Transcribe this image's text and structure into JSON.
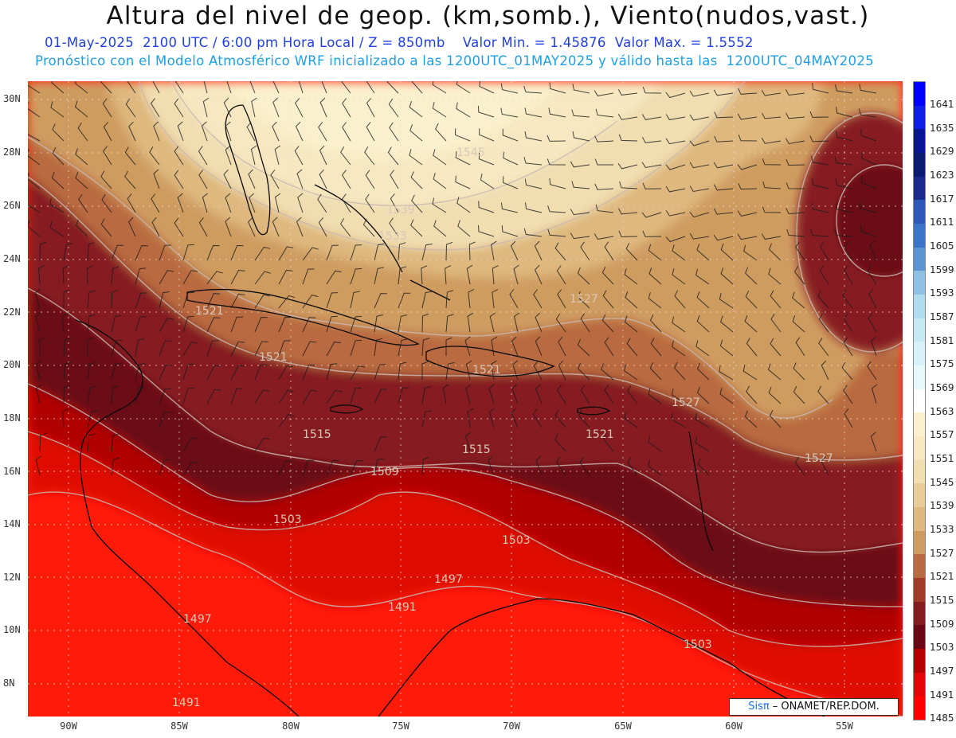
{
  "header": {
    "title": "Altura del nivel de geop. (km,somb.), Viento(nudos,vast.)",
    "subtitle": "01-May-2025  2100 UTC / 6:00 pm Hora Local / Z = 850mb    Valor Min. = 1.45876  Valor Max. = 1.5552",
    "subtitle2": "Pronóstico con el Modelo Atmosférico WRF inicializado a las 1200UTC_01MAY2025 y válido hasta las  1200UTC_04MAY2025"
  },
  "axes": {
    "lat_labels": [
      "30N",
      "28N",
      "26N",
      "24N",
      "22N",
      "20N",
      "18N",
      "16N",
      "14N",
      "12N",
      "10N",
      "8N"
    ],
    "lon_labels": [
      "90W",
      "85W",
      "80W",
      "75W",
      "70W",
      "65W",
      "60W",
      "55W"
    ]
  },
  "contours": {
    "labels": [
      "1545",
      "1539",
      "1533",
      "1527",
      "1521",
      "1521",
      "1521",
      "1521",
      "1527",
      "1527",
      "1515",
      "1515",
      "1509",
      "1503",
      "1503",
      "1497",
      "1491",
      "1497",
      "1503",
      "1491"
    ]
  },
  "colorbar": {
    "labels": [
      "1641",
      "1635",
      "1629",
      "1623",
      "1617",
      "1611",
      "1605",
      "1599",
      "1593",
      "1587",
      "1581",
      "1575",
      "1569",
      "1563",
      "1557",
      "1551",
      "1545",
      "1539",
      "1533",
      "1527",
      "1521",
      "1515",
      "1509",
      "1503",
      "1497",
      "1491",
      "1485"
    ],
    "colors": [
      "#0000ff",
      "#0f1ee8",
      "#0a1499",
      "#0b1a72",
      "#1b2a8c",
      "#2d57b8",
      "#3a74c9",
      "#5b93d4",
      "#8ec1e4",
      "#b0dcef",
      "#c6e9f4",
      "#d6f1f7",
      "#e7f8fb",
      "#ffffff",
      "#fbf0cd",
      "#f7e8c1",
      "#f0ddb0",
      "#e8cd98",
      "#deb87e",
      "#cf9c60",
      "#b96a40",
      "#a23a2a",
      "#861c22",
      "#6a0716",
      "#b40000",
      "#e30606",
      "#ff0000"
    ]
  },
  "credit": {
    "brand": "Sisπ",
    "text": " – ONAMET/REP.DOM."
  }
}
